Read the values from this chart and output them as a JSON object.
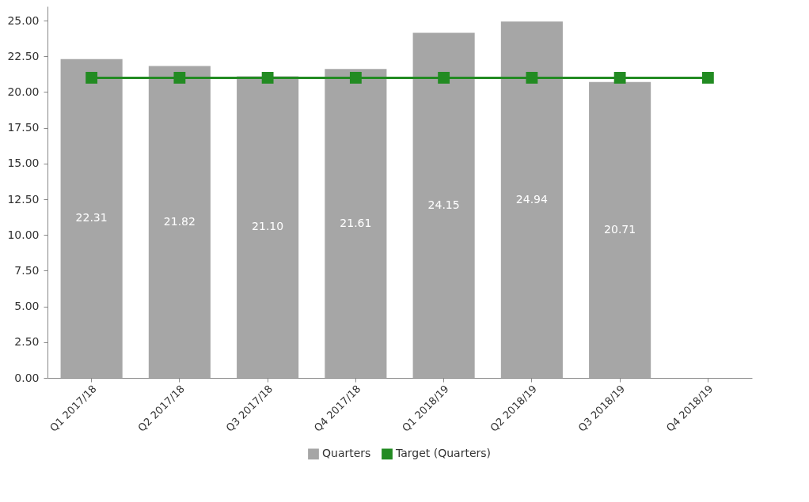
{
  "chart_data": {
    "type": "bar",
    "categories": [
      "Q1 2017/18",
      "Q2 2017/18",
      "Q3 2017/18",
      "Q4 2017/18",
      "Q1 2018/19",
      "Q2 2018/19",
      "Q3 2018/19",
      "Q4 2018/19"
    ],
    "series": [
      {
        "name": "Quarters",
        "color": "#a6a6a6",
        "values": [
          22.31,
          21.82,
          21.1,
          21.61,
          24.15,
          24.94,
          20.71,
          null
        ],
        "value_labels": [
          "22.31",
          "21.82",
          "21.10",
          "21.61",
          "24.15",
          "24.94",
          "20.71",
          null
        ]
      },
      {
        "name": "Target (Quarters)",
        "type": "line",
        "color": "#228b22",
        "values": [
          21.0,
          21.0,
          21.0,
          21.0,
          21.0,
          21.0,
          21.0,
          21.0
        ]
      }
    ],
    "ylim": [
      0,
      26
    ],
    "yticks": [
      {
        "value": 0,
        "label": "0.00"
      },
      {
        "value": 2.5,
        "label": "2.50"
      },
      {
        "value": 5,
        "label": "5.00"
      },
      {
        "value": 7.5,
        "label": "7.50"
      },
      {
        "value": 10,
        "label": "10.00"
      },
      {
        "value": 12.5,
        "label": "12.50"
      },
      {
        "value": 15,
        "label": "15.00"
      },
      {
        "value": 17.5,
        "label": "17.50"
      },
      {
        "value": 20,
        "label": "20.00"
      },
      {
        "value": 22.5,
        "label": "22.50"
      },
      {
        "value": 25,
        "label": "25.00"
      }
    ],
    "grid": false,
    "legend": "bottom",
    "marker": "square",
    "line_style": "solid"
  }
}
